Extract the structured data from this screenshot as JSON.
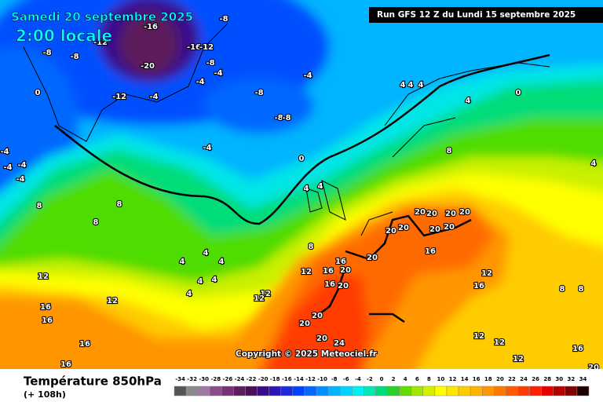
{
  "header": {
    "title": "Samedi 20 septembre 2025",
    "time": "2:00 locale",
    "run": "Run GFS 12 Z du Lundi 15 septembre 2025"
  },
  "copyright": "Copyright © 2025 Meteociel.fr",
  "legend": {
    "title": "Température 850hPa",
    "subtitle": "(+ 108h)",
    "ticks": [
      -34,
      -32,
      -30,
      -28,
      -26,
      -24,
      -22,
      -20,
      -18,
      -16,
      -14,
      -12,
      -10,
      -8,
      -6,
      -4,
      -2,
      0,
      2,
      4,
      6,
      8,
      10,
      12,
      14,
      16,
      18,
      20,
      22,
      24,
      26,
      28,
      30,
      32,
      34
    ],
    "colors": [
      "#555555",
      "#8a8a8a",
      "#a07aa0",
      "#8c4d8c",
      "#7a2f7a",
      "#5c1f5c",
      "#4b0f5a",
      "#3a0a8c",
      "#2d14b4",
      "#1e28dc",
      "#0040ff",
      "#0068ff",
      "#0090ff",
      "#00b4ff",
      "#00d4ff",
      "#00f0f0",
      "#00e6b4",
      "#00dc78",
      "#28d228",
      "#64dc00",
      "#a0e600",
      "#d2f000",
      "#ffff00",
      "#ffe600",
      "#ffcc00",
      "#ffb400",
      "#ff9600",
      "#ff7800",
      "#ff5a00",
      "#ff3c00",
      "#ff1e00",
      "#e60000",
      "#b40000",
      "#820000",
      "#1e0000"
    ]
  },
  "map": {
    "labels": [
      "-8",
      "-16",
      "-12",
      "-8",
      "-8",
      "-16",
      "-12",
      "-20",
      "-8",
      "-4",
      "-4",
      "-4",
      "-12",
      "-4",
      "-8",
      "-8",
      "-8",
      "0",
      "0",
      "4",
      "4",
      "4",
      "4",
      "-4",
      "0",
      "-4",
      "-4",
      "-4",
      "-4",
      "8",
      "4",
      "4",
      "4",
      "8",
      "8",
      "8",
      "20",
      "20",
      "20",
      "20",
      "20",
      "20",
      "20",
      "20",
      "8",
      "4",
      "4",
      "4",
      "16",
      "20",
      "16",
      "20",
      "16",
      "12",
      "4",
      "4",
      "16",
      "20",
      "12",
      "4",
      "12",
      "12",
      "12",
      "16",
      "16",
      "20",
      "20",
      "12",
      "16",
      "8",
      "8",
      "12",
      "12",
      "16",
      "20",
      "24",
      "16",
      "12",
      "16",
      "20"
    ]
  }
}
